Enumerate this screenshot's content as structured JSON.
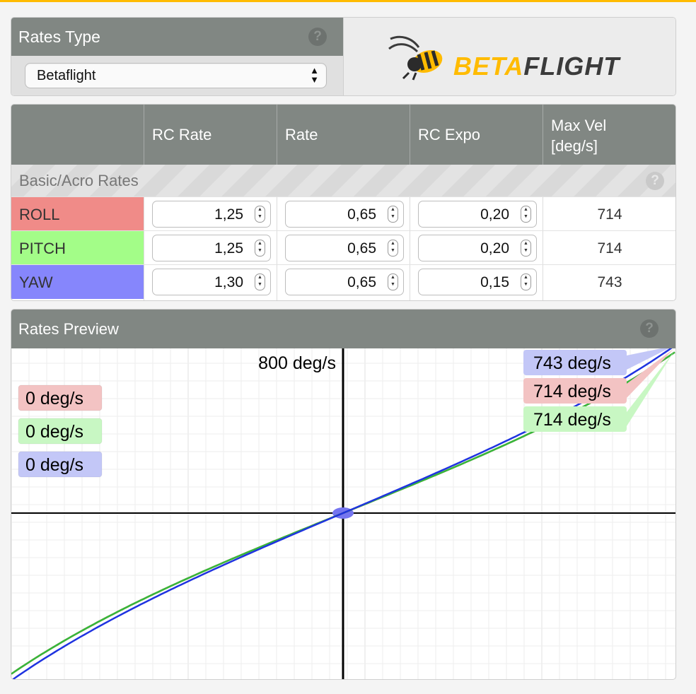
{
  "rates_type": {
    "title": "Rates Type",
    "help_icon": "?",
    "selected": "Betaflight",
    "logo": {
      "beta": "BETA",
      "flight": "FLIGHT"
    }
  },
  "table": {
    "headers": [
      "",
      "RC Rate",
      "Rate",
      "RC Expo",
      "Max Vel\n[deg/s]"
    ],
    "section_label": "Basic/Acro Rates",
    "help_icon": "?",
    "rows": [
      {
        "axis": "ROLL",
        "color": "#f08b88",
        "rc_rate": "1,25",
        "rate": "0,65",
        "rc_expo": "0,20",
        "max_vel": "714"
      },
      {
        "axis": "PITCH",
        "color": "#a3fd88",
        "rc_rate": "1,25",
        "rate": "0,65",
        "rc_expo": "0,20",
        "max_vel": "714"
      },
      {
        "axis": "YAW",
        "color": "#8686fc",
        "rc_rate": "1,30",
        "rate": "0,65",
        "rc_expo": "0,15",
        "max_vel": "743"
      }
    ]
  },
  "preview": {
    "title": "Rates Preview",
    "help_icon": "?",
    "scale_label": "800 deg/s",
    "current_labels": [
      {
        "text": "0 deg/s",
        "color": "#f3c3c3"
      },
      {
        "text": "0 deg/s",
        "color": "#c8f7c3"
      },
      {
        "text": "0 deg/s",
        "color": "#c3c7f7"
      }
    ],
    "max_labels": [
      {
        "text": "743 deg/s",
        "color": "#c3c7f7"
      },
      {
        "text": "714 deg/s",
        "color": "#f3c3c3"
      },
      {
        "text": "714 deg/s",
        "color": "#c8f7c3"
      }
    ]
  },
  "chart_data": {
    "type": "line",
    "xlabel": "",
    "ylabel": "",
    "xlim": [
      -1,
      1
    ],
    "ylim": [
      -800,
      800
    ],
    "grid": true,
    "series": [
      {
        "name": "ROLL",
        "color": "#c0392b",
        "max": 714,
        "rc_rate": 1.25,
        "rate": 0.65,
        "rc_expo": 0.2
      },
      {
        "name": "PITCH",
        "color": "#35b83a",
        "max": 714,
        "rc_rate": 1.25,
        "rate": 0.65,
        "rc_expo": 0.2
      },
      {
        "name": "YAW",
        "color": "#1f33e0",
        "max": 743,
        "rc_rate": 1.3,
        "rate": 0.65,
        "rc_expo": 0.15
      }
    ]
  }
}
